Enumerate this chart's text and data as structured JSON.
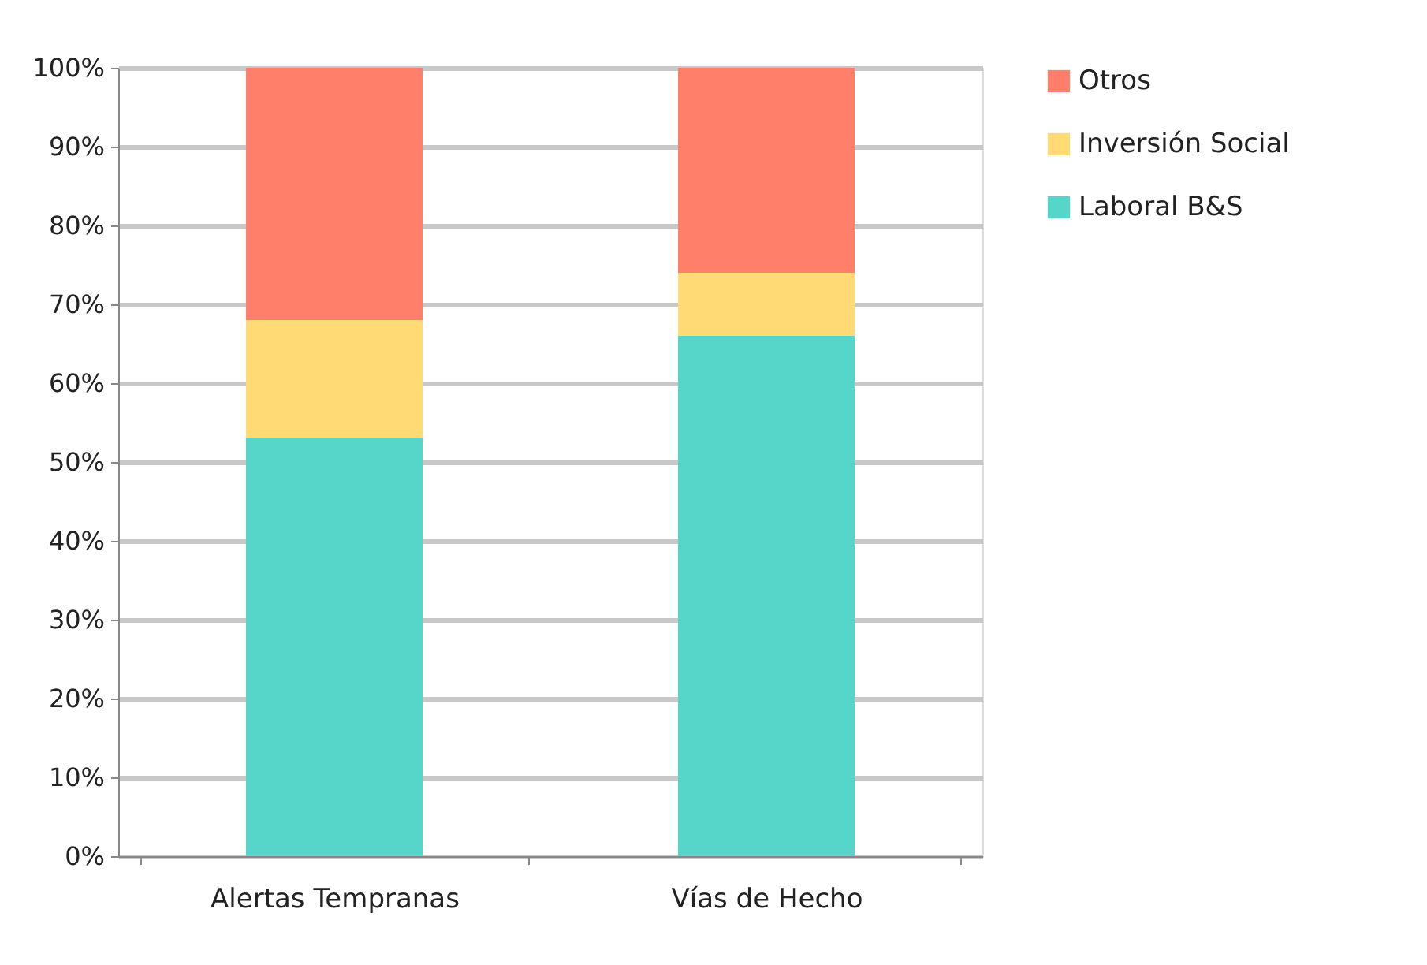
{
  "chart_data": {
    "type": "bar",
    "stacked": true,
    "categories": [
      "Alertas Tempranas",
      "Vías de Hecho"
    ],
    "series": [
      {
        "name": "Laboral B&S",
        "color": "#56d6c9",
        "values": [
          53,
          66
        ]
      },
      {
        "name": "Inversión Social",
        "color": "#ffda75",
        "values": [
          15,
          8
        ]
      },
      {
        "name": "Otros",
        "color": "#ff7f6a",
        "values": [
          32,
          26
        ]
      }
    ],
    "ylim": [
      0,
      100
    ],
    "yticks": [
      {
        "value": 0,
        "label": "0%"
      },
      {
        "value": 10,
        "label": "10%"
      },
      {
        "value": 20,
        "label": "20%"
      },
      {
        "value": 30,
        "label": "30%"
      },
      {
        "value": 40,
        "label": "40%"
      },
      {
        "value": 50,
        "label": "50%"
      },
      {
        "value": 60,
        "label": "60%"
      },
      {
        "value": 70,
        "label": "70%"
      },
      {
        "value": 80,
        "label": "80%"
      },
      {
        "value": 90,
        "label": "90%"
      },
      {
        "value": 100,
        "label": "100%"
      }
    ],
    "grid": "y",
    "legend": "right"
  }
}
